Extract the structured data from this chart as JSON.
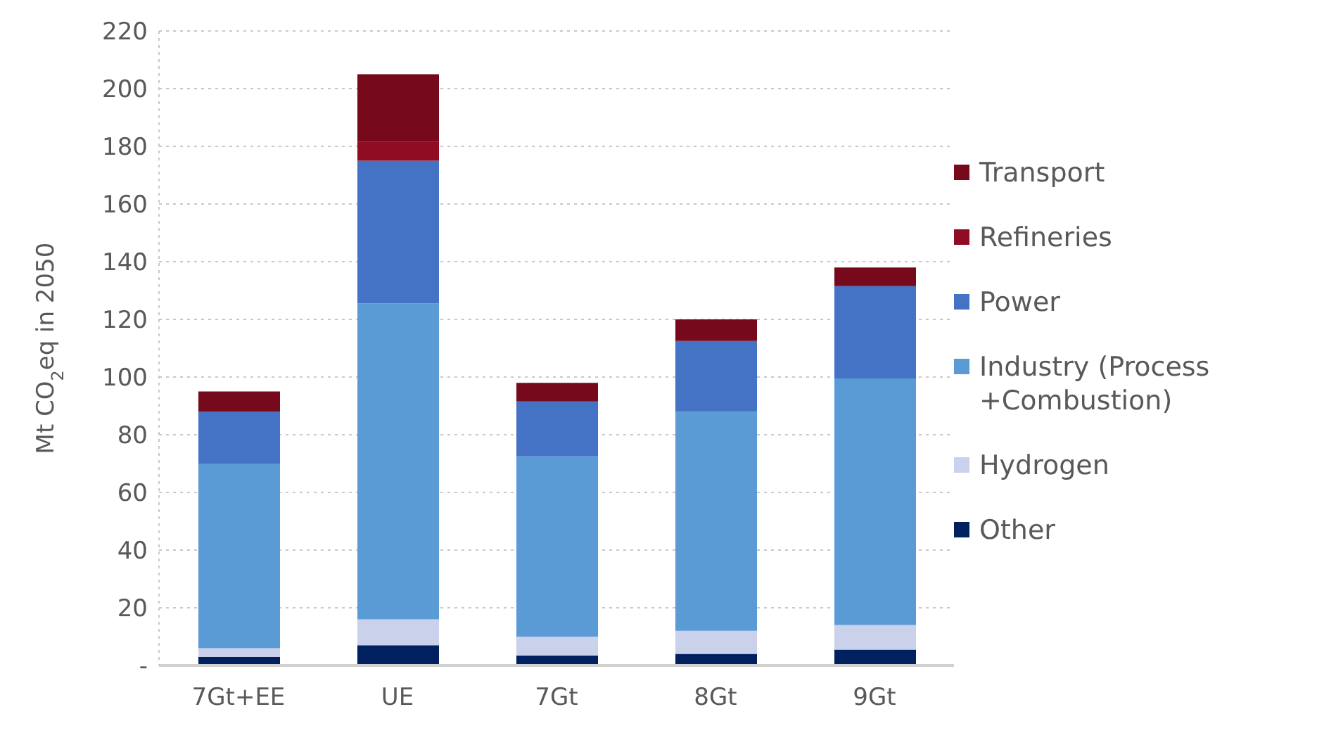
{
  "chart_data": {
    "type": "bar",
    "stacked": true,
    "ylabel": "Mt CO$_{2}$eq in 2050",
    "categories": [
      "7Gt+EE",
      "UE",
      "7Gt",
      "8Gt",
      "9Gt"
    ],
    "series": [
      {
        "name": "Other",
        "color": "#002060",
        "values": [
          3,
          7,
          3.5,
          4,
          5.5
        ]
      },
      {
        "name": "Hydrogen",
        "color": "#cad1ea",
        "values": [
          3,
          9,
          6.5,
          8,
          8.5
        ]
      },
      {
        "name": "Industry (Process +Combustion)",
        "color": "#5b9bd5",
        "values": [
          64,
          109.5,
          62.5,
          76,
          85.5
        ]
      },
      {
        "name": "Power",
        "color": "#4472c4",
        "values": [
          18,
          49.5,
          19,
          24.5,
          32
        ]
      },
      {
        "name": "Refineries",
        "color": "#900c22",
        "values": [
          0,
          6.5,
          0,
          0,
          0
        ]
      },
      {
        "name": "Transport",
        "color": "#76091c",
        "values": [
          7,
          23.5,
          6.5,
          7.5,
          6.5
        ]
      }
    ],
    "ylim": [
      0,
      220
    ],
    "yticks": [
      {
        "value": 0,
        "label": "-"
      },
      20,
      40,
      60,
      80,
      100,
      120,
      140,
      160,
      180,
      200,
      220
    ],
    "grid": "y",
    "legend": "right"
  }
}
